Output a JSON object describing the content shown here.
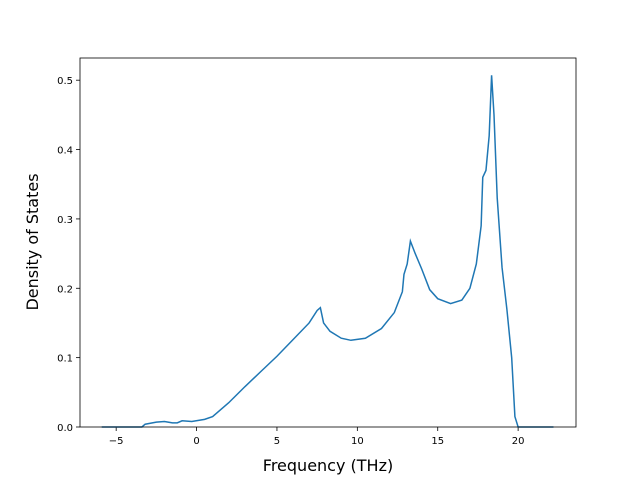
{
  "chart_data": {
    "type": "line",
    "xlabel": "Frequency (THz)",
    "ylabel": "Density of States",
    "x": [
      -5.9,
      -3.4,
      -3.2,
      -2.5,
      -2.0,
      -1.5,
      -1.2,
      -0.9,
      -0.3,
      0.5,
      1.0,
      2.0,
      3.0,
      4.0,
      5.0,
      6.0,
      7.0,
      7.5,
      7.7,
      7.9,
      8.3,
      9.0,
      9.6,
      10.5,
      11.5,
      12.3,
      12.8,
      12.9,
      13.1,
      13.3,
      13.6,
      14.0,
      14.5,
      15.0,
      15.8,
      16.5,
      17.0,
      17.4,
      17.7,
      17.8,
      18.0,
      18.2,
      18.35,
      18.5,
      18.7,
      19.0,
      19.3,
      19.6,
      19.8,
      20.0,
      22.2
    ],
    "y": [
      0,
      0,
      0.004,
      0.007,
      0.008,
      0.006,
      0.006,
      0.009,
      0.008,
      0.011,
      0.015,
      0.035,
      0.058,
      0.08,
      0.102,
      0.126,
      0.15,
      0.168,
      0.172,
      0.15,
      0.138,
      0.128,
      0.125,
      0.128,
      0.142,
      0.165,
      0.195,
      0.22,
      0.235,
      0.268,
      0.25,
      0.228,
      0.198,
      0.185,
      0.178,
      0.183,
      0.2,
      0.235,
      0.29,
      0.36,
      0.37,
      0.42,
      0.507,
      0.45,
      0.33,
      0.23,
      0.17,
      0.1,
      0.015,
      0,
      0
    ],
    "color": "#1f77b4",
    "xlim": [
      -7.25,
      23.6
    ],
    "ylim": [
      0,
      0.532
    ],
    "xticks": [
      {
        "value": -5,
        "label": "−5"
      },
      0,
      5,
      10,
      15,
      20
    ],
    "yticks": [
      {
        "value": 0,
        "label": "0.0"
      },
      0.1,
      0.2,
      0.3,
      0.4,
      0.5
    ]
  }
}
